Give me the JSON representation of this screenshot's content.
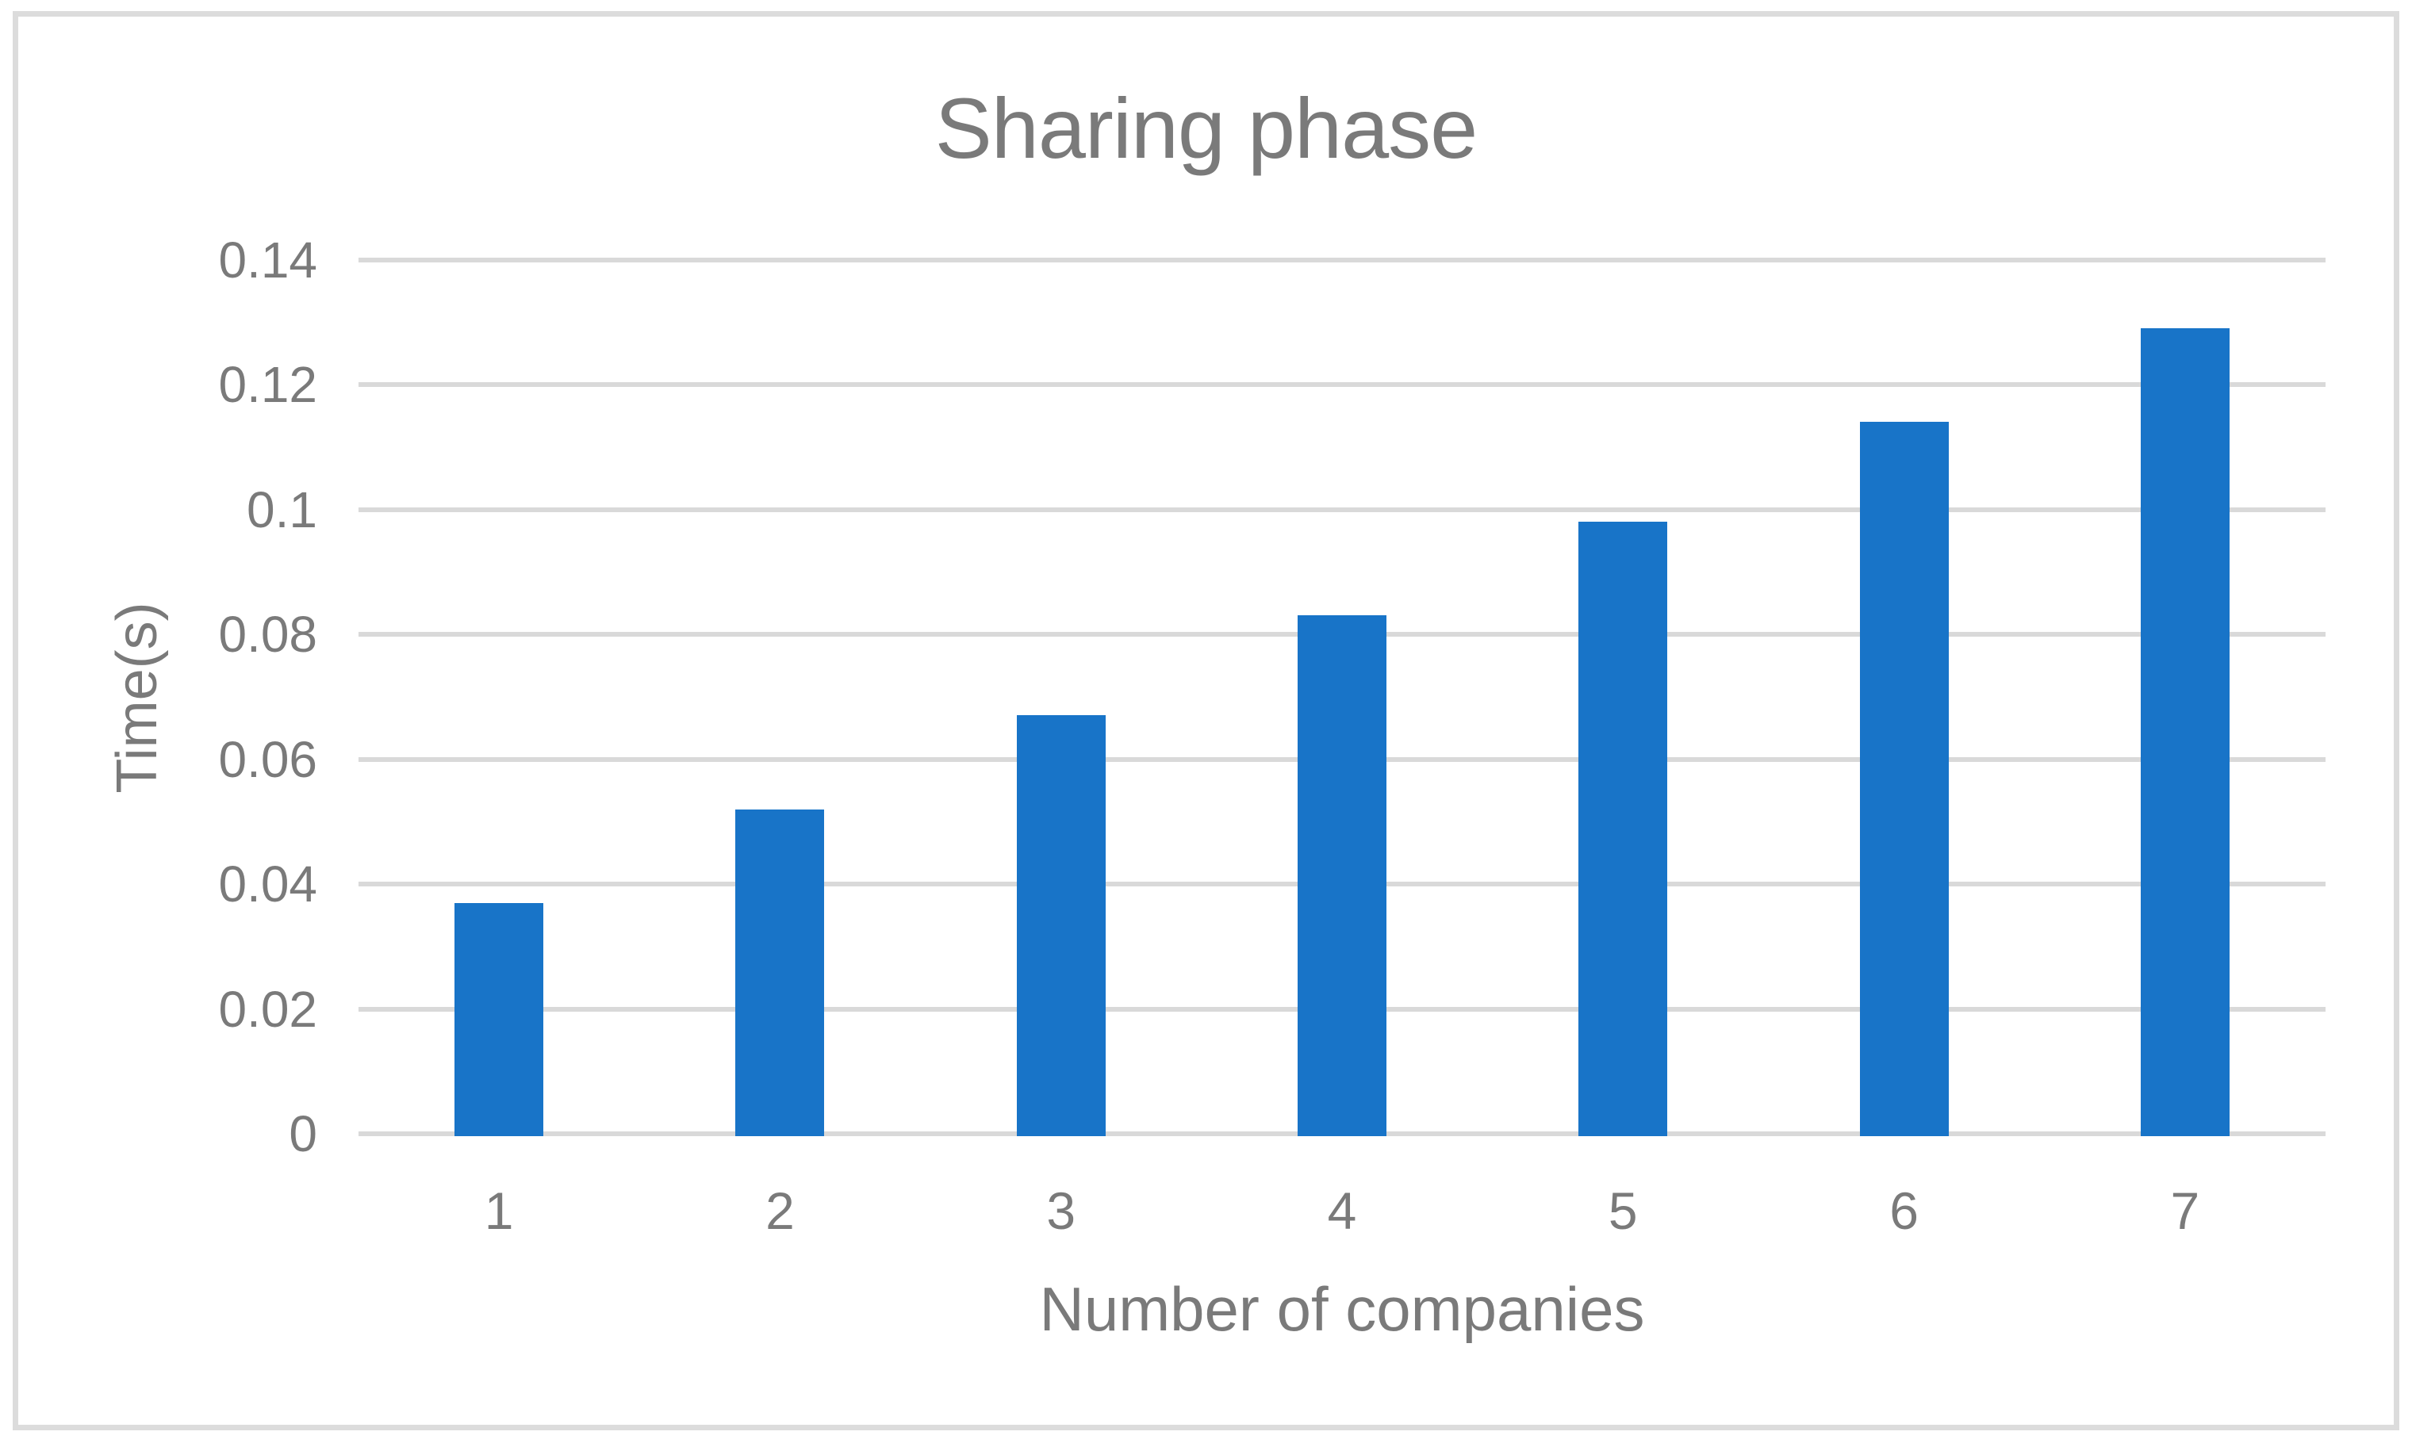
{
  "figure": {
    "background_color": "#FFFFFF",
    "border_color": "#DCDCDC"
  },
  "chart_data": {
    "type": "bar",
    "title": "Sharing phase",
    "xlabel": "Number of companies",
    "ylabel": "Time(s)",
    "categories": [
      "1",
      "2",
      "3",
      "4",
      "5",
      "6",
      "7"
    ],
    "values": [
      0.037,
      0.052,
      0.067,
      0.083,
      0.098,
      0.114,
      0.129
    ],
    "ylim": [
      0,
      0.14
    ],
    "y_tick_interval": 0.02,
    "y_tick_labels": [
      "0",
      "0.02",
      "0.04",
      "0.06",
      "0.08",
      "0.1",
      "0.12",
      "0.14"
    ],
    "grid": true,
    "legend": false,
    "bar_color": "#1874C8",
    "gridline_color": "#D9D9D9",
    "text_color": "#7A7A7A"
  }
}
